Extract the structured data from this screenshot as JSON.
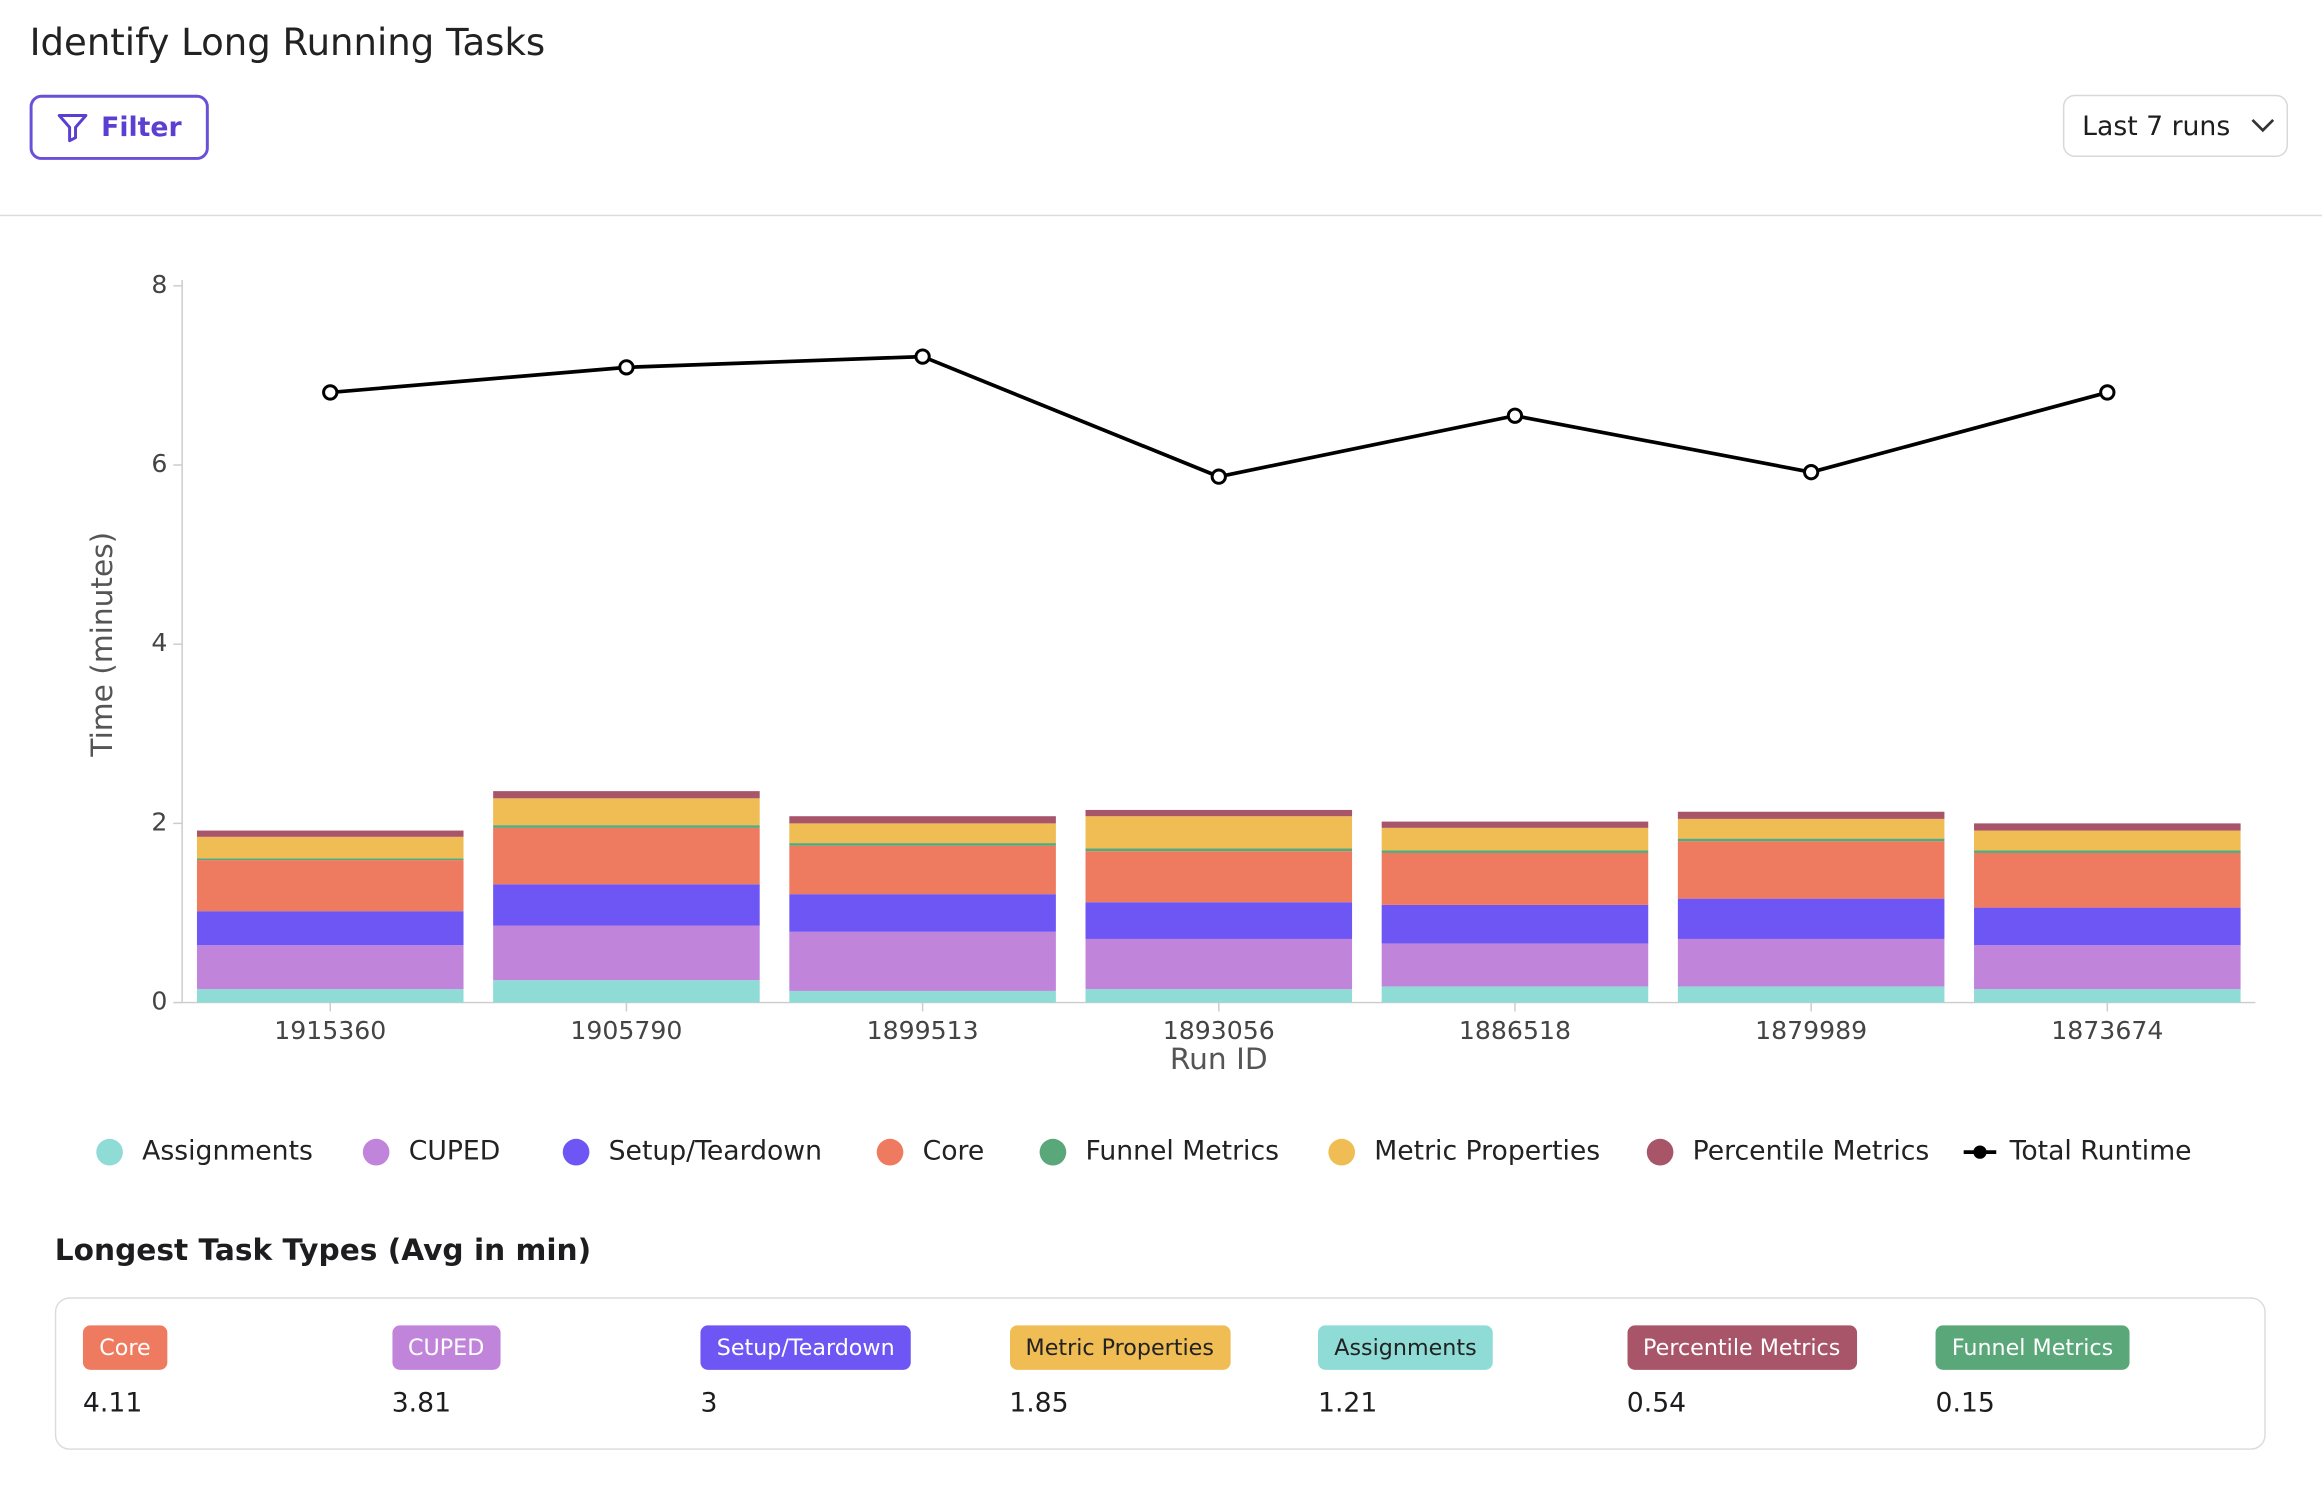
{
  "header": {
    "title": "Identify Long Running Tasks",
    "filter_button": "Filter",
    "range_select": "Last 7 runs"
  },
  "chart_data": {
    "type": "bar",
    "stacked": true,
    "x_label": "Run ID",
    "y_label": "Time (minutes)",
    "categories": [
      "1915360",
      "1905790",
      "1899513",
      "1893056",
      "1886518",
      "1879989",
      "1873674"
    ],
    "ylim": [
      0,
      8
    ],
    "yticks": [
      0,
      2,
      4,
      6,
      8
    ],
    "grid": false,
    "series": [
      {
        "name": "Assignments",
        "color": "#8fdcd6",
        "values": [
          0.15,
          0.25,
          0.13,
          0.15,
          0.18,
          0.18,
          0.15
        ]
      },
      {
        "name": "CUPED",
        "color": "#c084db",
        "values": [
          0.49,
          0.61,
          0.66,
          0.56,
          0.48,
          0.53,
          0.49
        ]
      },
      {
        "name": "Setup/Teardown",
        "color": "#6e56f5",
        "values": [
          0.38,
          0.46,
          0.42,
          0.41,
          0.43,
          0.45,
          0.42
        ]
      },
      {
        "name": "Core",
        "color": "#ee7b60",
        "values": [
          0.57,
          0.63,
          0.54,
          0.57,
          0.58,
          0.64,
          0.61
        ]
      },
      {
        "name": "Funnel Metrics",
        "color": "#5aa77a",
        "values": [
          0.02,
          0.03,
          0.03,
          0.03,
          0.03,
          0.03,
          0.03
        ]
      },
      {
        "name": "Metric Properties",
        "color": "#f0bd55",
        "values": [
          0.24,
          0.3,
          0.22,
          0.36,
          0.25,
          0.22,
          0.22
        ]
      },
      {
        "name": "Percentile Metrics",
        "color": "#a8556a",
        "values": [
          0.07,
          0.08,
          0.08,
          0.07,
          0.07,
          0.08,
          0.08
        ]
      },
      {
        "name": "Total Runtime",
        "type": "line",
        "color": "#000000",
        "values": [
          6.81,
          7.09,
          7.21,
          5.87,
          6.55,
          5.92,
          6.81
        ]
      }
    ]
  },
  "summary": {
    "title": "Longest Task Types (Avg in min)",
    "items": [
      {
        "label": "Core",
        "color": "#ee7b60",
        "value": 4.11
      },
      {
        "label": "CUPED",
        "color": "#c084db",
        "value": 3.81
      },
      {
        "label": "Setup/Teardown",
        "color": "#6e56f5",
        "value": 3
      },
      {
        "label": "Metric Properties",
        "color": "#f0bd55",
        "value": 1.85
      },
      {
        "label": "Assignments",
        "color": "#8fdcd6",
        "value": 1.21
      },
      {
        "label": "Percentile Metrics",
        "color": "#a8556a",
        "value": 0.54
      },
      {
        "label": "Funnel Metrics",
        "color": "#5aa77a",
        "value": 0.15
      }
    ]
  }
}
